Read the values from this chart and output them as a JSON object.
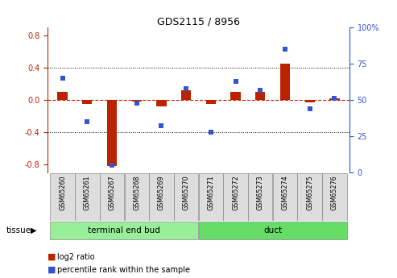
{
  "title": "GDS2115 / 8956",
  "samples": [
    "GSM65260",
    "GSM65261",
    "GSM65267",
    "GSM65268",
    "GSM65269",
    "GSM65270",
    "GSM65271",
    "GSM65272",
    "GSM65273",
    "GSM65274",
    "GSM65275",
    "GSM65276"
  ],
  "log2_ratio": [
    0.1,
    -0.05,
    -0.82,
    -0.02,
    -0.08,
    0.12,
    -0.05,
    0.1,
    0.1,
    0.45,
    -0.03,
    0.02
  ],
  "percentile": [
    65,
    35,
    5,
    48,
    32,
    58,
    28,
    63,
    57,
    85,
    44,
    51
  ],
  "groups": [
    {
      "label": "terminal end bud",
      "start": 0,
      "end": 5,
      "color": "#99EE99"
    },
    {
      "label": "duct",
      "start": 6,
      "end": 11,
      "color": "#66DD66"
    }
  ],
  "ylim_left": [
    -0.9,
    0.9
  ],
  "yticks_left": [
    -0.8,
    -0.4,
    0.0,
    0.4,
    0.8
  ],
  "yticks_right": [
    0,
    25,
    50,
    75,
    100
  ],
  "bar_color_red": "#BB2200",
  "bar_color_blue": "#3355CC",
  "tissue_label": "tissue",
  "legend_red": "log2 ratio",
  "legend_blue": "percentile rank within the sample"
}
